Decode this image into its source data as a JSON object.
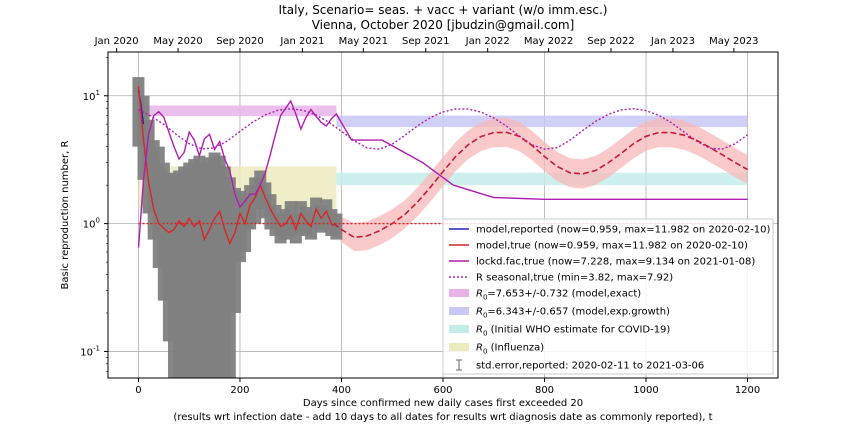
{
  "title": {
    "line1": "Italy, Scenario= seas. + vacc + variant (w/o imm.esc.)",
    "line2": "Vienna, October 2020 [jbudzin@gmail.com]"
  },
  "chart_data": {
    "type": "line",
    "scale": {
      "x": "linear",
      "y": "log"
    },
    "xlim": [
      -60,
      1260
    ],
    "ylim": [
      0.062,
      22
    ],
    "grid": true,
    "legend_placement": "lower-right",
    "xlabel_line1": "Days since confirmed new daily cases first exceeded 20",
    "xlabel_line2": "(results wrt infection date - add 10 days to all dates for results wrt diagnosis date as commonly reported), t",
    "ylabel": "Basic reproduction number, R",
    "x_ticks": [
      "0",
      "200",
      "400",
      "600",
      "800",
      "1000",
      "1200"
    ],
    "x_tick_values": [
      0,
      200,
      400,
      600,
      800,
      1000,
      1200
    ],
    "y_ticks": [
      "10^-1",
      "10^0",
      "10^1"
    ],
    "y_tick_values": [
      0.1,
      1,
      10
    ],
    "top_axis": {
      "labels": [
        "Jan 2020",
        "May 2020",
        "Sep 2020",
        "Jan 2021",
        "May 2021",
        "Sep 2021",
        "Jan 2022",
        "May 2022",
        "Sep 2022",
        "Jan 2023",
        "May 2023"
      ],
      "positions": [
        -43,
        78,
        200,
        323,
        443,
        566,
        688,
        808,
        931,
        1053,
        1173
      ]
    },
    "bands": [
      {
        "name": "R0=7.653+/-0.732 (model,exact)",
        "x": [
          0,
          390
        ],
        "y": [
          6.92,
          8.39
        ],
        "color": "#e8b4e8"
      },
      {
        "name": "R0=6.343+/-0.657 (model,exp.growth)",
        "x": [
          390,
          1200
        ],
        "y": [
          5.69,
          7.0
        ],
        "color": "#c8c8f4"
      },
      {
        "name": "R0 (Initial WHO estimate for COVID-19)",
        "x": [
          390,
          1200
        ],
        "y": [
          2.0,
          2.5
        ],
        "color": "#c4ecea"
      },
      {
        "name": "R0 (Influenza)",
        "x": [
          0,
          390
        ],
        "y": [
          1.3,
          2.8
        ],
        "color": "#ecebc0"
      }
    ],
    "series": [
      {
        "name": "model,reported (now=0.959, max=11.982 on 2020-02-10)",
        "color": "#2020c0",
        "style": "solid",
        "x": [
          0,
          5,
          10
        ],
        "y": [
          11.0,
          8.5,
          6.0
        ]
      },
      {
        "name": "model,true (now=0.959, max=11.982 on 2020-02-10)",
        "color": "#d62728",
        "style": "solid",
        "x": [
          0,
          10,
          20,
          30,
          40,
          50,
          60,
          70,
          80,
          90,
          100,
          110,
          120,
          130,
          140,
          150,
          160,
          170,
          180,
          190,
          200,
          210,
          220,
          230,
          240,
          250,
          260,
          270,
          280,
          290,
          300,
          310,
          320,
          330,
          340,
          350,
          360,
          370,
          380,
          385
        ],
        "y": [
          11.9,
          4.5,
          2.1,
          1.3,
          1.0,
          0.92,
          0.85,
          0.9,
          1.05,
          0.95,
          1.1,
          0.95,
          1.05,
          0.75,
          0.9,
          1.1,
          1.25,
          0.9,
          0.7,
          0.85,
          1.2,
          1.0,
          1.4,
          1.6,
          2.0,
          1.6,
          1.3,
          1.1,
          0.95,
          1.0,
          1.15,
          0.9,
          1.2,
          1.05,
          0.95,
          1.3,
          1.1,
          1.25,
          1.0,
          0.96
        ]
      },
      {
        "name": "lockd.fac,true (now=7.228, max=9.134 on 2021-01-08)",
        "color": "#b01eb0",
        "style": "solid",
        "x": [
          0,
          10,
          20,
          30,
          40,
          50,
          60,
          70,
          80,
          90,
          100,
          110,
          120,
          130,
          140,
          150,
          160,
          170,
          180,
          190,
          200,
          210,
          220,
          230,
          240,
          250,
          260,
          270,
          280,
          290,
          300,
          310,
          320,
          330,
          340,
          350,
          360,
          370,
          380,
          390,
          420,
          480,
          560,
          620,
          700,
          800,
          900,
          1000,
          1100,
          1200
        ],
        "y": [
          0.65,
          2.2,
          5.0,
          7.0,
          7.5,
          6.8,
          5.2,
          4.0,
          3.2,
          3.6,
          5.2,
          4.5,
          3.4,
          4.6,
          5.0,
          3.8,
          4.4,
          3.2,
          2.6,
          1.7,
          1.35,
          1.5,
          1.7,
          1.7,
          2.0,
          2.5,
          3.5,
          5.0,
          7.0,
          8.0,
          9.1,
          7.2,
          5.5,
          6.8,
          7.8,
          6.9,
          6.2,
          5.8,
          6.6,
          7.2,
          4.5,
          4.5,
          3.0,
          2.0,
          1.6,
          1.55,
          1.55,
          1.55,
          1.55,
          1.55
        ]
      },
      {
        "name": "R seasonal,true (min=3.82, max=7.92)",
        "color": "#b01eb0",
        "style": "dotted",
        "x": [
          0,
          25,
          50,
          75,
          100,
          125,
          150,
          175,
          200,
          225,
          250,
          275,
          300,
          325,
          350,
          375,
          400,
          425,
          450,
          475,
          500,
          525,
          550,
          575,
          600,
          625,
          650,
          675,
          700,
          725,
          750,
          775,
          800,
          825,
          850,
          875,
          900,
          925,
          950,
          975,
          1000,
          1025,
          1050,
          1075,
          1100,
          1125,
          1150,
          1175,
          1200
        ],
        "y": [
          7.79,
          6.94,
          5.96,
          4.97,
          4.22,
          3.84,
          3.92,
          4.43,
          5.26,
          6.21,
          7.09,
          7.71,
          7.91,
          7.68,
          7.07,
          6.21,
          5.26,
          4.45,
          3.91,
          3.82,
          4.18,
          4.9,
          5.82,
          6.75,
          7.48,
          7.88,
          7.87,
          7.45,
          6.7,
          5.79,
          4.86,
          4.14,
          3.82,
          3.93,
          4.49,
          5.34,
          6.29,
          7.14,
          7.74,
          7.92,
          7.66,
          7.03,
          6.16,
          5.21,
          4.41,
          3.9,
          3.83,
          4.2,
          4.95
        ]
      },
      {
        "name": "forecast",
        "color": "#c41e3a",
        "style": "dashed",
        "x": [
          385,
          400,
          425,
          450,
          475,
          500,
          525,
          550,
          575,
          600,
          625,
          650,
          675,
          700,
          725,
          750,
          775,
          800,
          825,
          850,
          875,
          900,
          925,
          950,
          975,
          1000,
          1025,
          1050,
          1075,
          1100,
          1125,
          1150,
          1175,
          1200
        ],
        "y": [
          1.0,
          0.9,
          0.78,
          0.8,
          0.88,
          1.0,
          1.18,
          1.48,
          1.92,
          2.55,
          3.35,
          4.15,
          4.8,
          5.15,
          5.18,
          4.82,
          4.1,
          3.35,
          2.8,
          2.5,
          2.45,
          2.6,
          2.98,
          3.52,
          4.2,
          4.82,
          5.15,
          5.15,
          4.92,
          4.48,
          3.96,
          3.46,
          3.01,
          2.65
        ]
      },
      {
        "name": "model band",
        "color": "#f8b8b8",
        "style": "band",
        "x": [
          385,
          400,
          425,
          450,
          475,
          500,
          525,
          550,
          575,
          600,
          625,
          650,
          675,
          700,
          725,
          750,
          775,
          800,
          825,
          850,
          875,
          900,
          925,
          950,
          975,
          1000,
          1025,
          1050,
          1075,
          1100,
          1125,
          1150,
          1175,
          1200
        ],
        "lower": [
          0.85,
          0.72,
          0.61,
          0.62,
          0.68,
          0.77,
          0.92,
          1.14,
          1.48,
          1.96,
          2.58,
          3.2,
          3.7,
          3.96,
          3.98,
          3.7,
          3.15,
          2.58,
          2.15,
          1.92,
          1.88,
          2.0,
          2.29,
          2.71,
          3.23,
          3.71,
          3.96,
          3.96,
          3.78,
          3.44,
          3.05,
          2.66,
          2.32,
          2.04
        ],
        "upper": [
          1.18,
          1.13,
          1.01,
          1.04,
          1.14,
          1.3,
          1.52,
          1.92,
          2.5,
          3.32,
          4.35,
          5.38,
          6.22,
          6.68,
          6.72,
          6.26,
          5.32,
          4.35,
          3.64,
          3.25,
          3.18,
          3.38,
          3.87,
          4.58,
          5.46,
          6.27,
          6.68,
          6.68,
          6.39,
          5.82,
          5.14,
          4.5,
          3.91,
          3.44
        ]
      },
      {
        "name": "std.error,reported: 2020-02-11 to 2021-03-06",
        "color": "#808080",
        "style": "errorbar",
        "x": [
          0,
          10,
          20,
          30,
          40,
          50,
          60,
          70,
          80,
          90,
          100,
          110,
          120,
          130,
          140,
          150,
          160,
          170,
          180,
          190,
          200,
          210,
          220,
          230,
          240,
          250,
          260,
          270,
          280,
          290,
          300,
          310,
          320,
          330,
          340,
          350,
          360,
          370,
          380,
          390
        ],
        "lower": [
          4.0,
          2.2,
          1.2,
          0.75,
          0.45,
          0.25,
          0.12,
          0.06,
          0.05,
          0.05,
          0.05,
          0.05,
          0.05,
          0.05,
          0.05,
          0.05,
          0.05,
          0.05,
          0.06,
          0.2,
          0.5,
          0.6,
          0.9,
          1.0,
          1.3,
          1.1,
          0.9,
          0.8,
          0.7,
          0.75,
          0.8,
          0.7,
          0.85,
          0.8,
          0.75,
          0.9,
          0.85,
          0.9,
          0.8,
          0.75
        ],
        "upper": [
          14.0,
          10.0,
          6.5,
          4.5,
          4.0,
          3.0,
          2.5,
          2.4,
          2.6,
          2.8,
          3.0,
          3.2,
          3.4,
          3.0,
          3.3,
          3.6,
          3.4,
          2.8,
          2.3,
          1.9,
          1.8,
          1.6,
          2.0,
          2.3,
          2.6,
          2.1,
          1.7,
          1.4,
          1.2,
          1.3,
          1.5,
          1.2,
          1.5,
          1.35,
          1.25,
          1.6,
          1.4,
          1.55,
          1.3,
          1.2
        ]
      },
      {
        "name": "threshold",
        "color": "#d62728",
        "style": "dotted",
        "x": [
          0,
          1200
        ],
        "y": [
          1,
          1
        ]
      }
    ],
    "legend": [
      {
        "label": "model,reported (now=0.959, max=11.982 on 2020-02-10)",
        "kind": "line",
        "color": "#2020c0",
        "dash": ""
      },
      {
        "label": "model,true (now=0.959, max=11.982 on 2020-02-10)",
        "kind": "line",
        "color": "#d62728",
        "dash": ""
      },
      {
        "label": "lockd.fac,true (now=7.228, max=9.134 on 2021-01-08)",
        "kind": "line",
        "color": "#b01eb0",
        "dash": ""
      },
      {
        "label": "R seasonal,true (min=3.82, max=7.92)",
        "kind": "line",
        "color": "#b01eb0",
        "dash": "2,2"
      },
      {
        "label": "=7.653+/-0.732 (model,exact)",
        "kind": "band",
        "color": "#e8b4e8",
        "dash": ""
      },
      {
        "label": "=6.343+/-0.657 (model,exp.growth)",
        "kind": "band",
        "color": "#c8c8f4",
        "dash": ""
      },
      {
        "label": " (Initial WHO estimate for COVID-19)",
        "kind": "band",
        "color": "#c4ecea",
        "dash": ""
      },
      {
        "label": " (Influenza)",
        "kind": "band",
        "color": "#ecebc0",
        "dash": ""
      },
      {
        "label": "std.error,reported: 2020-02-11 to 2021-03-06",
        "kind": "errorbar",
        "color": "#808080",
        "dash": ""
      }
    ]
  }
}
